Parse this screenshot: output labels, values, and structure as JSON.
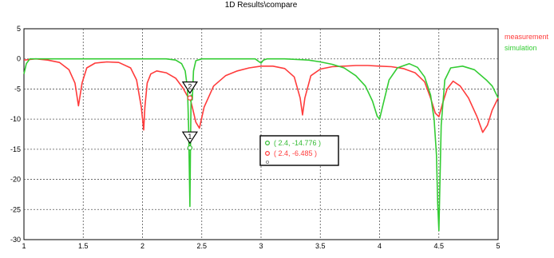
{
  "window": {
    "title": "1D Results\\compare"
  },
  "legend": [
    {
      "label": "measurement",
      "color": "#ff3b3b"
    },
    {
      "label": "simulation",
      "color": "#33cc33"
    }
  ],
  "markers": [
    {
      "id": "1",
      "x": 2.4,
      "y": -14.776,
      "series": "simulation"
    },
    {
      "id": "2",
      "x": 2.4,
      "y": -6.485,
      "series": "measurement"
    }
  ],
  "readout": {
    "lines": [
      {
        "text": "( 2.4, -14.776 )",
        "color": "#33bb33"
      },
      {
        "text": "( 2.4, -6.485 )",
        "color": "#ff3b3b"
      }
    ]
  },
  "chart_data": {
    "type": "line",
    "title": "1D Results\\compare",
    "xlabel": "",
    "ylabel": "",
    "xlim": [
      1,
      5
    ],
    "ylim": [
      -30,
      5
    ],
    "xticks": [
      "1",
      "1.5",
      "2",
      "2.5",
      "3",
      "3.5",
      "4",
      "4.5",
      "5"
    ],
    "yticks": [
      "5",
      "0",
      "-5",
      "-10",
      "-15",
      "-20",
      "-25",
      "-30"
    ],
    "grid": true,
    "legend_position": "right",
    "series": [
      {
        "name": "measurement",
        "color": "#ff3b3b",
        "x": [
          1.0,
          1.05,
          1.1,
          1.2,
          1.3,
          1.38,
          1.43,
          1.46,
          1.49,
          1.53,
          1.6,
          1.7,
          1.8,
          1.9,
          1.95,
          1.99,
          2.01,
          2.02,
          2.04,
          2.07,
          2.12,
          2.2,
          2.28,
          2.34,
          2.38,
          2.4,
          2.42,
          2.45,
          2.48,
          2.52,
          2.6,
          2.7,
          2.8,
          2.9,
          3.0,
          3.1,
          3.2,
          3.28,
          3.33,
          3.35,
          3.37,
          3.42,
          3.5,
          3.6,
          3.7,
          3.8,
          3.9,
          4.0,
          4.1,
          4.2,
          4.3,
          4.38,
          4.43,
          4.47,
          4.5,
          4.53,
          4.57,
          4.62,
          4.68,
          4.75,
          4.82,
          4.87,
          4.91,
          4.95,
          5.0
        ],
        "y": [
          -0.2,
          -0.1,
          0.0,
          -0.2,
          -0.6,
          -1.8,
          -4.0,
          -7.8,
          -4.0,
          -1.5,
          -0.7,
          -0.5,
          -0.6,
          -1.5,
          -3.5,
          -8.0,
          -11.8,
          -8.0,
          -4.0,
          -2.5,
          -2.0,
          -2.3,
          -3.2,
          -4.8,
          -6.2,
          -6.485,
          -8.0,
          -10.5,
          -11.5,
          -8.0,
          -4.5,
          -2.8,
          -2.0,
          -1.5,
          -1.2,
          -1.2,
          -1.6,
          -3.0,
          -6.5,
          -9.3,
          -6.5,
          -2.8,
          -1.7,
          -1.3,
          -1.2,
          -1.1,
          -1.1,
          -1.2,
          -1.3,
          -1.6,
          -2.3,
          -3.8,
          -6.5,
          -9.0,
          -9.6,
          -7.5,
          -5.0,
          -3.7,
          -4.5,
          -6.5,
          -9.5,
          -12.2,
          -11.0,
          -8.5,
          -6.5
        ]
      },
      {
        "name": "simulation",
        "color": "#33cc33",
        "x": [
          1.0,
          1.02,
          1.05,
          1.1,
          1.2,
          1.4,
          1.6,
          1.8,
          2.0,
          2.1,
          2.2,
          2.28,
          2.33,
          2.36,
          2.38,
          2.39,
          2.4,
          2.405,
          2.41,
          2.42,
          2.43,
          2.45,
          2.5,
          2.6,
          2.8,
          2.95,
          3.0,
          3.02,
          3.05,
          3.2,
          3.4,
          3.5,
          3.6,
          3.7,
          3.8,
          3.88,
          3.94,
          3.98,
          4.0,
          4.03,
          4.08,
          4.15,
          4.25,
          4.32,
          4.38,
          4.43,
          4.46,
          4.48,
          4.49,
          4.5,
          4.51,
          4.52,
          4.55,
          4.6,
          4.7,
          4.8,
          4.9,
          4.95,
          5.0
        ],
        "y": [
          -2.5,
          -0.8,
          0.0,
          0.0,
          0.0,
          0.0,
          0.0,
          0.0,
          0.0,
          0.0,
          0.0,
          -0.2,
          -0.8,
          -2.0,
          -5.0,
          -12.0,
          -24.5,
          -14.776,
          -6.0,
          -6.8,
          -2.0,
          -0.3,
          0.0,
          0.0,
          0.0,
          0.0,
          -0.7,
          -0.2,
          0.0,
          0.0,
          -0.2,
          -0.5,
          -0.9,
          -1.5,
          -2.8,
          -4.5,
          -7.0,
          -9.5,
          -10.0,
          -7.5,
          -3.5,
          -1.5,
          -0.8,
          -1.4,
          -3.0,
          -6.0,
          -10.0,
          -16.0,
          -24.0,
          -28.5,
          -20.0,
          -11.0,
          -3.5,
          -1.5,
          -1.2,
          -1.8,
          -3.5,
          -4.5,
          -6.5
        ]
      }
    ]
  }
}
